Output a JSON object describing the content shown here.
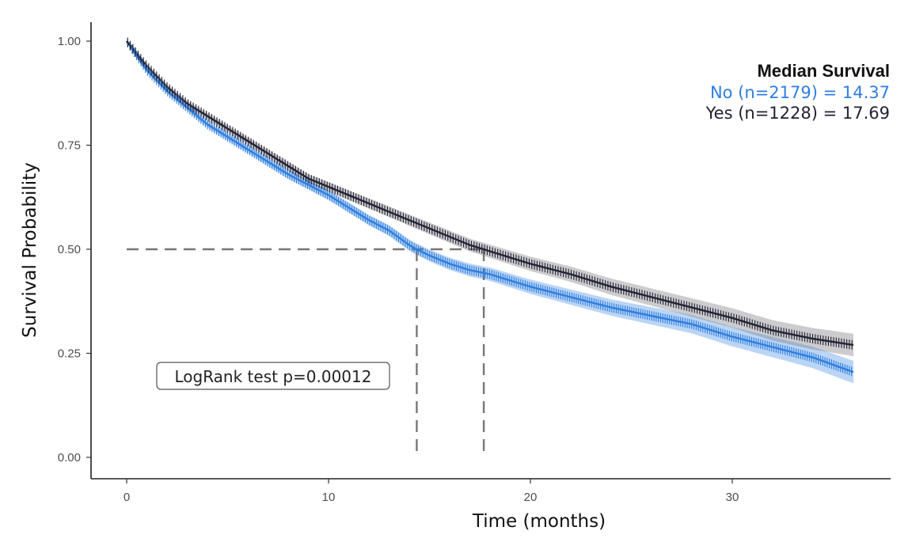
{
  "chart_data": {
    "type": "line",
    "xlabel": "Time (months)",
    "ylabel": "Survival Probability",
    "xlim": [
      0,
      36
    ],
    "ylim": [
      0,
      1
    ],
    "x_ticks": [
      "0",
      "10",
      "20",
      "30"
    ],
    "y_ticks": [
      "0.00",
      "0.25",
      "0.50",
      "0.75",
      "1.00"
    ],
    "grid": false,
    "legend_position": "top-right",
    "legend_title": "Median Survival",
    "annotation": "LogRank test p=0.00012",
    "median_line_y": 0.5,
    "series": [
      {
        "label": "No (n=2179) = 14.37",
        "color": "#2f7ee0",
        "median": 14.37,
        "x": [
          0,
          1,
          2,
          3,
          4,
          5,
          6,
          7,
          8,
          9,
          10,
          11,
          12,
          13,
          14,
          14.37,
          15,
          16,
          17,
          18,
          19,
          20,
          22,
          24,
          26,
          28,
          30,
          32,
          34,
          36
        ],
        "y": [
          1.0,
          0.93,
          0.88,
          0.84,
          0.8,
          0.77,
          0.74,
          0.71,
          0.68,
          0.655,
          0.63,
          0.6,
          0.57,
          0.545,
          0.51,
          0.5,
          0.485,
          0.465,
          0.45,
          0.44,
          0.425,
          0.41,
          0.385,
          0.36,
          0.34,
          0.32,
          0.29,
          0.265,
          0.24,
          0.205
        ]
      },
      {
        "label": "Yes (n=1228) = 17.69",
        "color": "#222233",
        "median": 17.69,
        "x": [
          0,
          1,
          2,
          3,
          4,
          5,
          6,
          7,
          8,
          9,
          10,
          11,
          12,
          13,
          14,
          15,
          16,
          17,
          17.69,
          18,
          19,
          20,
          22,
          24,
          26,
          28,
          30,
          32,
          34,
          36
        ],
        "y": [
          1.0,
          0.94,
          0.89,
          0.85,
          0.82,
          0.79,
          0.76,
          0.73,
          0.7,
          0.67,
          0.65,
          0.63,
          0.61,
          0.59,
          0.57,
          0.55,
          0.53,
          0.51,
          0.5,
          0.495,
          0.48,
          0.465,
          0.44,
          0.41,
          0.385,
          0.36,
          0.335,
          0.305,
          0.285,
          0.27
        ]
      }
    ]
  }
}
